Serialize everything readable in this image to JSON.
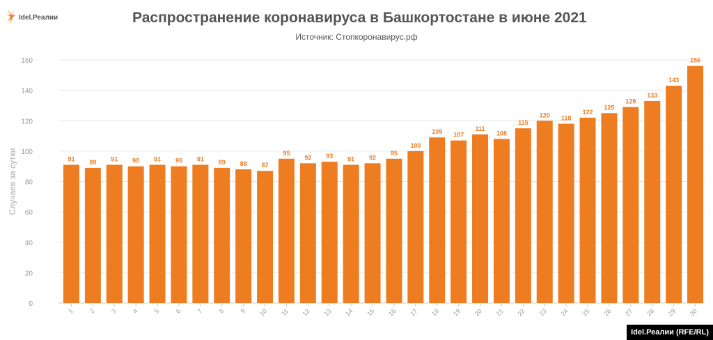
{
  "logo": "Idel.Реалии",
  "credit": "Idel.Реалии (RFE/RL)",
  "colors": {
    "bar": "#ee7d22",
    "label": "#ee7d22",
    "grid": "#e6e6e6",
    "text": "#555555"
  },
  "chart_data": {
    "type": "bar",
    "title": "Распространение коронавируса в Башкортостане в июне 2021",
    "subtitle": "Источник: Стопкоронавирус.рф",
    "ylabel": "Случаев за сутки",
    "xlabel": "",
    "ylim": [
      0,
      160
    ],
    "yticks": [
      0,
      20,
      40,
      60,
      80,
      100,
      120,
      140,
      160
    ],
    "grid": true,
    "categories": [
      "1",
      "2",
      "3",
      "4",
      "5",
      "6",
      "7",
      "8",
      "9",
      "10",
      "11",
      "12",
      "13",
      "14",
      "15",
      "16",
      "17",
      "18",
      "19",
      "20",
      "21",
      "22",
      "23",
      "24",
      "25",
      "26",
      "27",
      "28",
      "29",
      "30"
    ],
    "values": [
      91,
      89,
      91,
      90,
      91,
      90,
      91,
      89,
      88,
      87,
      95,
      92,
      93,
      91,
      92,
      95,
      100,
      109,
      107,
      111,
      108,
      115,
      120,
      118,
      122,
      125,
      129,
      133,
      143,
      156
    ]
  }
}
